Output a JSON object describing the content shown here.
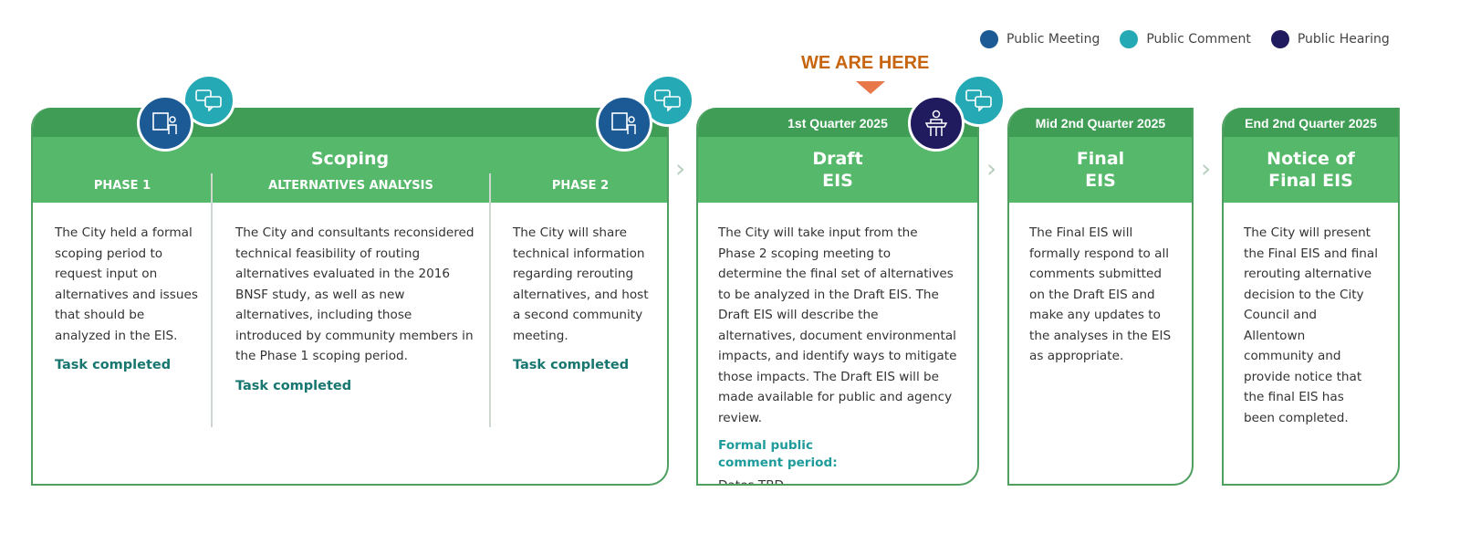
{
  "legend": [
    {
      "label": "Public Meeting",
      "color": "#1c5a96"
    },
    {
      "label": "Public Comment",
      "color": "#24a9b5"
    },
    {
      "label": "Public Hearing",
      "color": "#1f1b5e"
    }
  ],
  "marker": {
    "label": "WE ARE HERE",
    "color": "#c8650f"
  },
  "scoping": {
    "title": "Scoping",
    "columns": [
      {
        "heading": "PHASE 1",
        "text": "The City held a formal scoping period to request input on alternatives and issues that should be analyzed in the EIS.",
        "status": "Task completed"
      },
      {
        "heading": "ALTERNATIVES ANALYSIS",
        "text": "The City and consultants reconsidered technical feasibility of routing alternatives evaluated in the 2016 BNSF study, as well as new alternatives, including those introduced by community members in the Phase 1 scoping period.",
        "status": "Task completed"
      },
      {
        "heading": "PHASE 2",
        "text": "The City will share technical information regarding rerouting alternatives, and host a second community meeting.",
        "status": "Task completed"
      }
    ]
  },
  "draft": {
    "date": "1st Quarter 2025",
    "title1": "Draft",
    "title2": "EIS",
    "text": "The City will take input from the Phase 2 scoping meeting to determine the final set of alternatives to be analyzed in the Draft EIS. The Draft EIS will describe the alternatives, document environmental impacts, and identify ways to mitigate those impacts. The Draft EIS will be made available for public and agency review.",
    "comment_label1": "Formal public",
    "comment_label2": "comment period:",
    "comment_dates": "Dates TBD"
  },
  "final": {
    "date": "Mid 2nd Quarter 2025",
    "title1": "Final",
    "title2": "EIS",
    "text": "The Final EIS will formally respond to all comments submitted on the Draft EIS and make any updates to the analyses in the EIS as appropriate."
  },
  "notice": {
    "date": "End 2nd Quarter 2025",
    "title1": "Notice of",
    "title2": "Final EIS",
    "text": "The City will present the Final EIS and final rerouting alternative decision to the City Council and Allentown community and provide notice that the final EIS has been completed."
  }
}
